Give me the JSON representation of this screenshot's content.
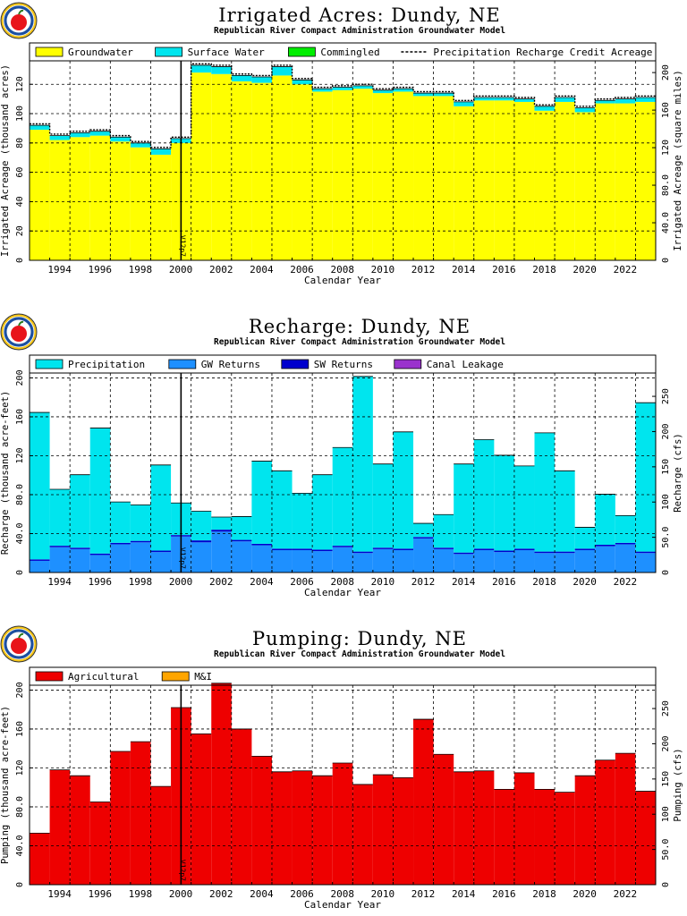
{
  "colors": {
    "groundwater": "#ffff00",
    "surface_water": "#00e5ee",
    "commingled": "#00ee00",
    "precipitation": "#00e5ee",
    "gw_returns": "#1e90ff",
    "sw_returns": "#0000cd",
    "canal_leakage": "#9a32cd",
    "agricultural": "#ee0000",
    "mi": "#ffa500",
    "logo_red": "#e8141b",
    "logo_ring": "#f5c518"
  },
  "chart_data": [
    {
      "type": "bar",
      "title": "Irrigated Acres: Dundy, NE",
      "subtitle": "Republican River Compact Administration Groundwater Model",
      "xlabel": "Calendar Year",
      "ylabel": "Irrigated Acreage (thousand acres)",
      "ylabel_right": "Irrigated Acreage (square miles)",
      "xlim": [
        1993,
        2024
      ],
      "ylim": [
        0,
        136
      ],
      "yticks": [
        0,
        20,
        40,
        60,
        80,
        100,
        120
      ],
      "ylim_right": [
        0,
        212.5
      ],
      "yticks_right": [
        0,
        40,
        80,
        120,
        160,
        200
      ],
      "ytick_labels_right": [
        "0",
        "40.0",
        "80.0",
        "120",
        "160",
        "200"
      ],
      "xtick_labels": [
        "1994",
        "1996",
        "1998",
        "2000",
        "2002",
        "2004",
        "2006",
        "2008",
        "2010",
        "2012",
        "2014",
        "2016",
        "2018",
        "2020",
        "2022"
      ],
      "marker": {
        "x": 2000.5,
        "label": "V12p7"
      },
      "legend": [
        "Groundwater",
        "Surface Water",
        "Commingled",
        "Precipitation Recharge Credit Acreage"
      ],
      "years": [
        1993,
        1994,
        1995,
        1996,
        1997,
        1998,
        1999,
        2000,
        2001,
        2002,
        2003,
        2004,
        2005,
        2006,
        2007,
        2008,
        2009,
        2010,
        2011,
        2012,
        2013,
        2014,
        2015,
        2016,
        2017,
        2018,
        2019,
        2020,
        2021,
        2022,
        2023
      ],
      "series": [
        {
          "name": "Groundwater",
          "color_key": "groundwater",
          "values": [
            89,
            82,
            84,
            85,
            81,
            77,
            72,
            80,
            128,
            127,
            122,
            121,
            126,
            120,
            115,
            116,
            117,
            114,
            115,
            112,
            112,
            105,
            109,
            109,
            108,
            102,
            108,
            101,
            107,
            107,
            108
          ]
        },
        {
          "name": "Surface Water",
          "color_key": "surface_water",
          "values": [
            3,
            3,
            3,
            3,
            3,
            3,
            4,
            3,
            5,
            5,
            4,
            4,
            6,
            3,
            2,
            2,
            2,
            2,
            2,
            2,
            2,
            3,
            2,
            2,
            2,
            3,
            3,
            3,
            2,
            3,
            3
          ]
        },
        {
          "name": "Commingled",
          "color_key": "commingled",
          "values": [
            0,
            0,
            0,
            0,
            0,
            0,
            0,
            0,
            0,
            0,
            0,
            0,
            0,
            0,
            0,
            0,
            0,
            0,
            0,
            0,
            0,
            0,
            0,
            0,
            0,
            0,
            0,
            0,
            0,
            0,
            0
          ]
        }
      ],
      "line": {
        "name": "Precipitation Recharge Credit Acreage",
        "values": [
          93,
          86,
          88,
          89,
          85,
          81,
          77,
          84,
          134,
          133,
          127,
          126,
          133,
          124,
          118,
          119,
          120,
          117,
          118,
          115,
          115,
          109,
          112,
          112,
          111,
          106,
          112,
          105,
          110,
          111,
          112
        ]
      },
      "units_scale": 1.5625
    },
    {
      "type": "bar",
      "title": "Recharge: Dundy, NE",
      "subtitle": "Republican River Compact Administration Groundwater Model",
      "xlabel": "Calendar Year",
      "ylabel": "Recharge (thousand acre-feet)",
      "ylabel_right": "Recharge (cfs)",
      "xlim": [
        1993,
        2024
      ],
      "ylim": [
        0,
        205
      ],
      "yticks": [
        0,
        40,
        80,
        120,
        160,
        200
      ],
      "ytick_labels": [
        "0",
        "40.0",
        "80.0",
        "120",
        "160",
        "200"
      ],
      "ylim_right": [
        0,
        283.1
      ],
      "yticks_right": [
        0,
        50,
        100,
        150,
        200,
        250
      ],
      "ytick_labels_right": [
        "0",
        "50.0",
        "100",
        "150",
        "200",
        "250"
      ],
      "xtick_labels": [
        "1994",
        "1996",
        "1998",
        "2000",
        "2002",
        "2004",
        "2006",
        "2008",
        "2010",
        "2012",
        "2014",
        "2016",
        "2018",
        "2020",
        "2022"
      ],
      "marker": {
        "x": 2000.5,
        "label": "V12p7"
      },
      "legend": [
        "Precipitation",
        "GW Returns",
        "SW Returns",
        "Canal Leakage"
      ],
      "years": [
        1993,
        1994,
        1995,
        1996,
        1997,
        1998,
        1999,
        2000,
        2001,
        2002,
        2003,
        2004,
        2005,
        2006,
        2007,
        2008,
        2009,
        2010,
        2011,
        2012,
        2013,
        2014,
        2015,
        2016,
        2017,
        2018,
        2019,
        2020,
        2021,
        2022,
        2023
      ],
      "series": [
        {
          "name": "GW Returns",
          "color_key": "gw_returns",
          "values": [
            12,
            26,
            24,
            18,
            29,
            31,
            21,
            37,
            31,
            42,
            32,
            28,
            23,
            23,
            22,
            26,
            20,
            24,
            23,
            35,
            24,
            19,
            23,
            21,
            23,
            20,
            20,
            23,
            27,
            29,
            20
          ]
        },
        {
          "name": "SW Returns",
          "color_key": "sw_returns",
          "values": [
            1.5,
            1.5,
            1.5,
            1.5,
            1.5,
            1.5,
            1.5,
            1.5,
            2,
            2,
            1.5,
            1.5,
            1.5,
            1.5,
            1.5,
            1.5,
            1.5,
            1.5,
            1.5,
            1.5,
            1.5,
            1.5,
            1.5,
            1.5,
            1.5,
            1.5,
            1.5,
            1.5,
            1.5,
            1.5,
            1.5
          ]
        },
        {
          "name": "Canal Leakage",
          "color_key": "canal_leakage",
          "values": [
            0,
            0,
            0,
            0,
            0,
            0,
            0,
            0,
            0,
            0,
            0,
            0,
            0,
            0,
            0,
            0,
            0,
            0,
            0,
            0,
            0,
            0,
            0,
            0,
            0,
            0,
            0,
            0,
            0,
            0,
            0
          ]
        },
        {
          "name": "Precipitation",
          "color_key": "precipitation",
          "values": [
            151,
            58,
            75,
            129,
            42,
            37,
            88,
            33,
            30,
            13,
            24,
            85,
            80,
            57,
            77,
            101,
            180,
            86,
            120,
            14,
            34,
            91,
            112,
            98,
            85,
            122,
            83,
            22,
            52,
            28,
            153
          ]
        }
      ]
    },
    {
      "type": "bar",
      "title": "Pumping: Dundy, NE",
      "subtitle": "Republican River Compact Administration Groundwater Model",
      "xlabel": "Calendar Year",
      "ylabel": "Pumping (thousand acre-feet)",
      "ylabel_right": "Pumping (cfs)",
      "xlim": [
        1993,
        2024
      ],
      "ylim": [
        0,
        205
      ],
      "yticks": [
        0,
        40,
        80,
        120,
        160,
        200
      ],
      "ytick_labels": [
        "0",
        "40.0",
        "80.0",
        "120",
        "160",
        "200"
      ],
      "ylim_right": [
        0,
        283.1
      ],
      "yticks_right": [
        0,
        50,
        100,
        150,
        200,
        250
      ],
      "ytick_labels_right": [
        "0",
        "50.0",
        "100",
        "150",
        "200",
        "250"
      ],
      "xtick_labels": [
        "1994",
        "1996",
        "1998",
        "2000",
        "2002",
        "2004",
        "2006",
        "2008",
        "2010",
        "2012",
        "2014",
        "2016",
        "2018",
        "2020",
        "2022"
      ],
      "marker": {
        "x": 2000.5,
        "label": "V12p7"
      },
      "legend": [
        "Agricultural",
        "M&I"
      ],
      "years": [
        1993,
        1994,
        1995,
        1996,
        1997,
        1998,
        1999,
        2000,
        2001,
        2002,
        2003,
        2004,
        2005,
        2006,
        2007,
        2008,
        2009,
        2010,
        2011,
        2012,
        2013,
        2014,
        2015,
        2016,
        2017,
        2018,
        2019,
        2020,
        2021,
        2022,
        2023
      ],
      "series": [
        {
          "name": "Agricultural",
          "color_key": "agricultural",
          "values": [
            53,
            118,
            112,
            85,
            137,
            147,
            101,
            182,
            155,
            207,
            160,
            132,
            116,
            117,
            112,
            125,
            103,
            113,
            110,
            170,
            134,
            116,
            117,
            98,
            115,
            98,
            95,
            112,
            128,
            135,
            96
          ]
        },
        {
          "name": "M&I",
          "color_key": "mi",
          "values": [
            0,
            0,
            0,
            0,
            0,
            0,
            0,
            0,
            0,
            0,
            0,
            0,
            0,
            0,
            0,
            0,
            0,
            0,
            0,
            0,
            0,
            0,
            0,
            0,
            0,
            0,
            0,
            0,
            0,
            0,
            0
          ]
        }
      ]
    }
  ]
}
